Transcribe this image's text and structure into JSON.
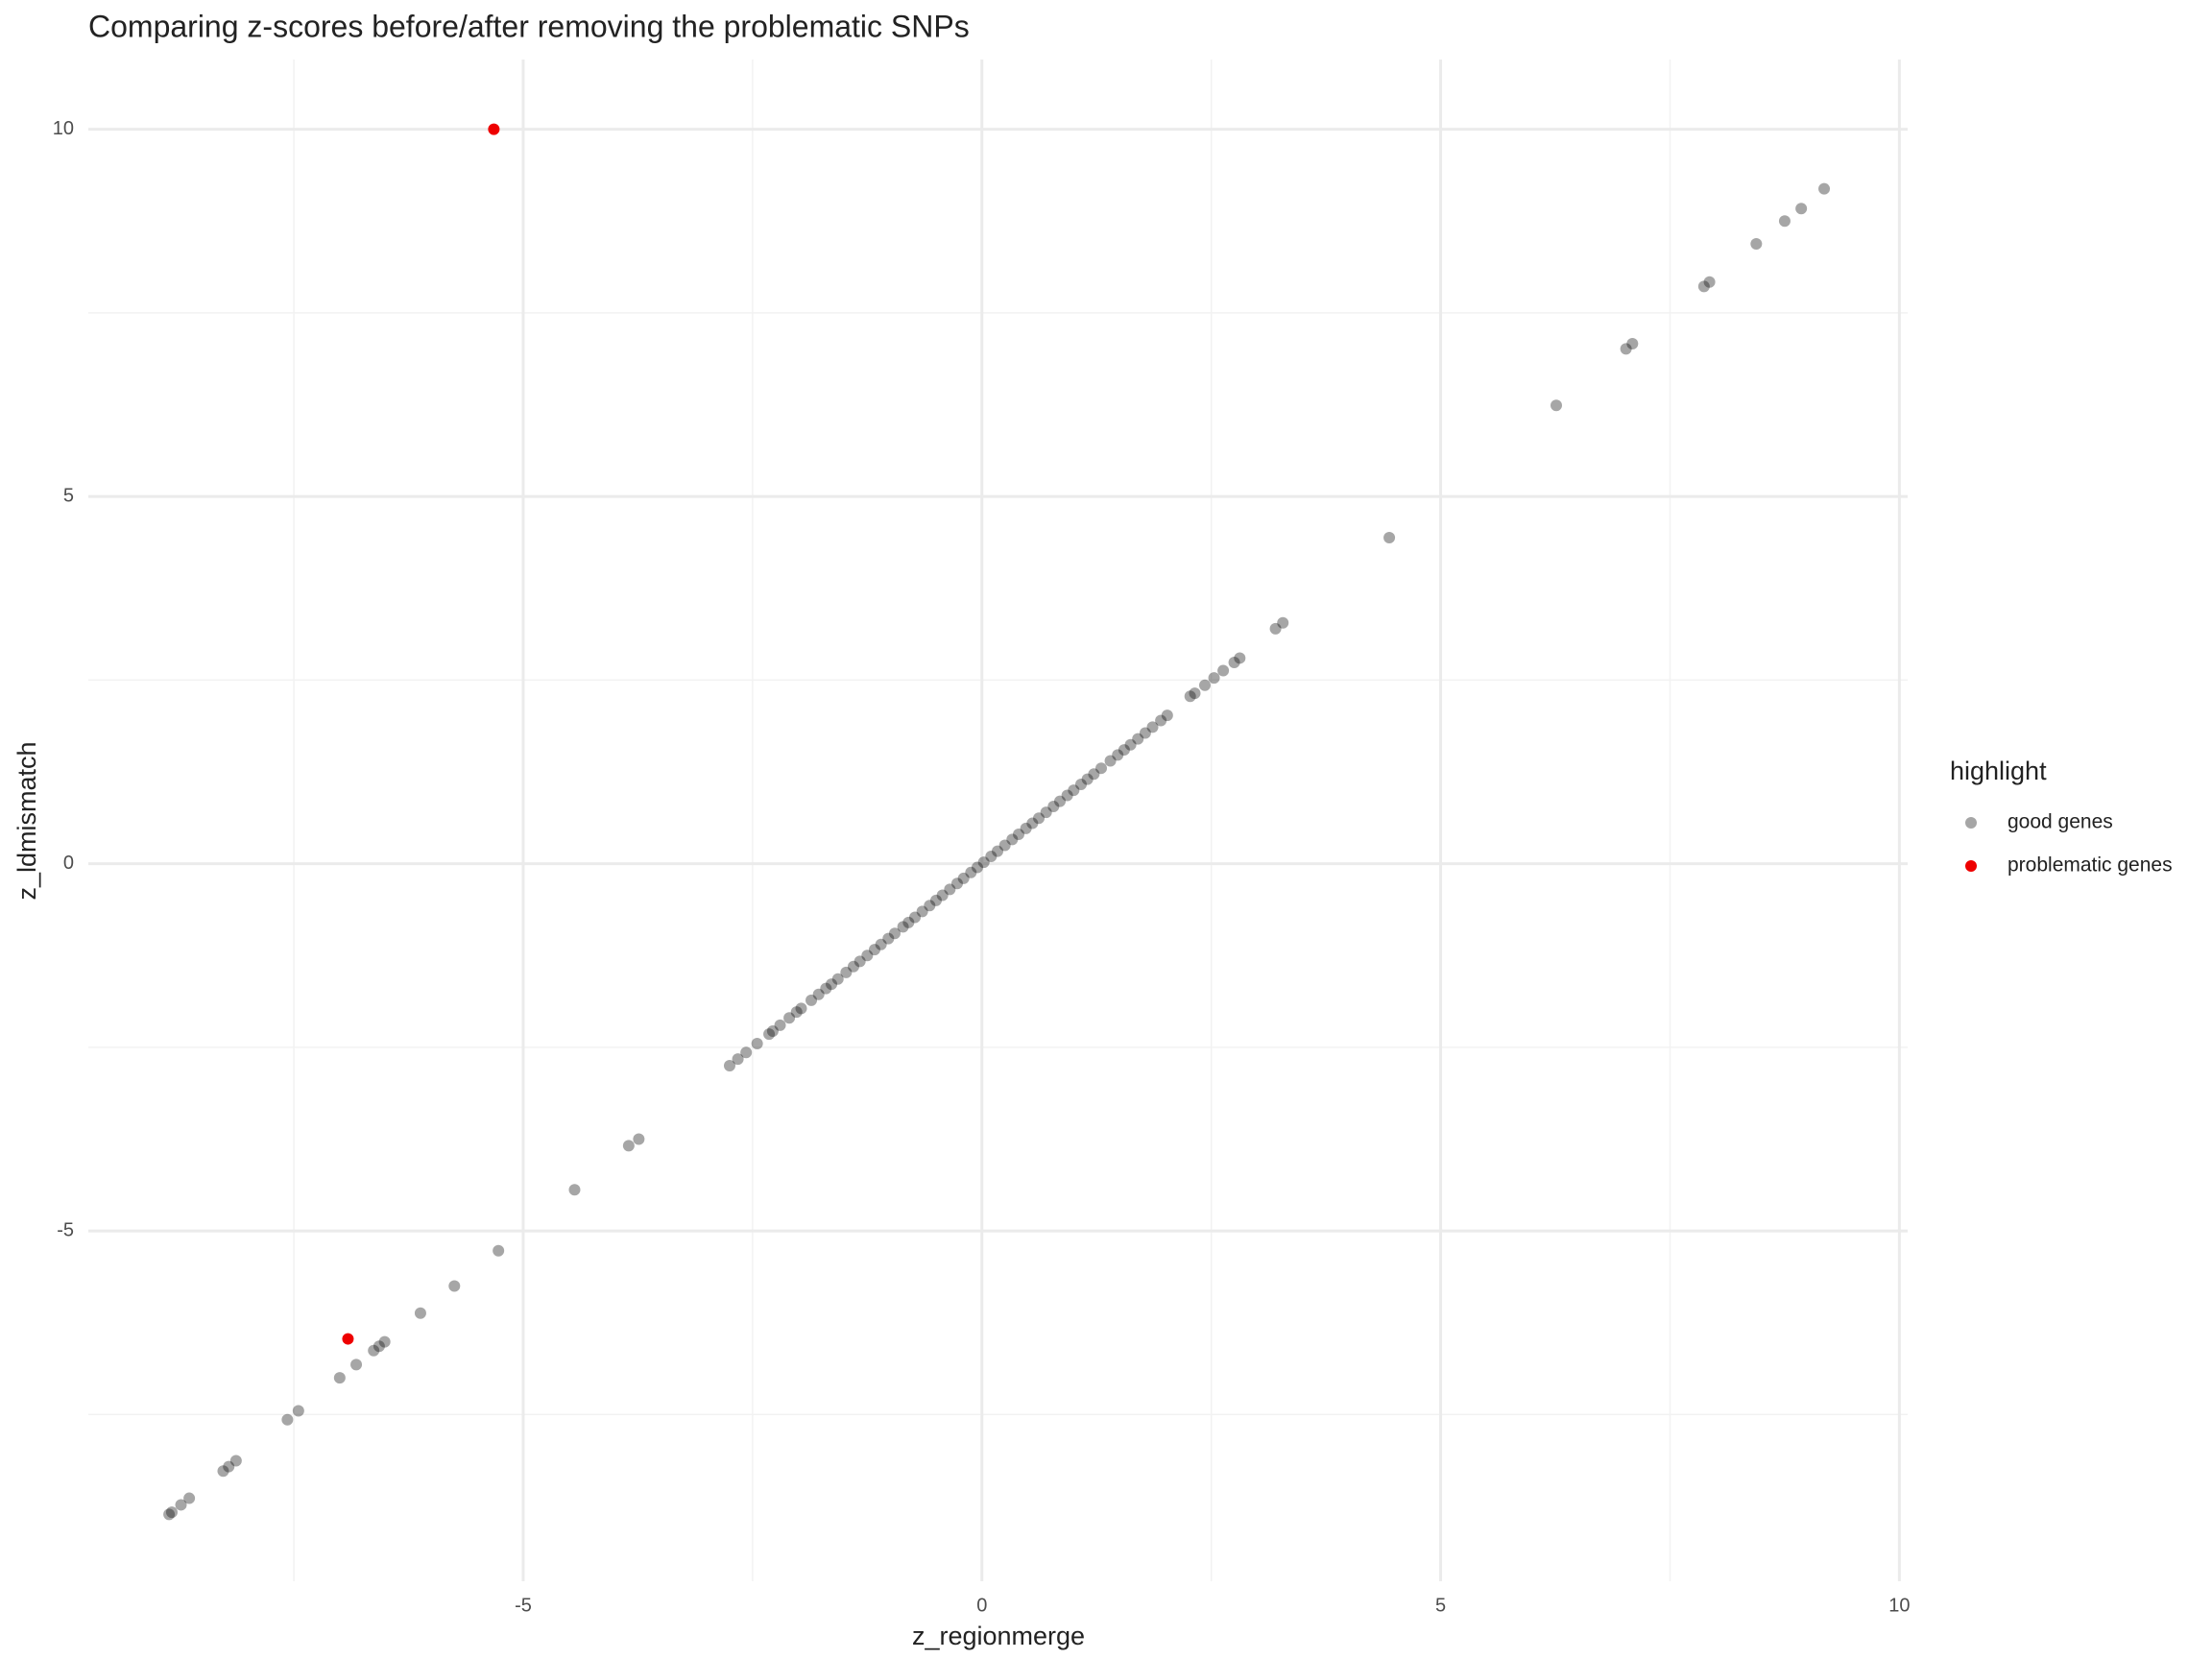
{
  "chart_data": {
    "type": "scatter",
    "title": "Comparing z-scores before/after removing the problematic SNPs",
    "x_label": "z_regionmerge",
    "y_label": "z_ldmismatch",
    "legend_title": "highlight",
    "legend": "right",
    "xlim": [
      -9.74,
      10.09
    ],
    "ylim": [
      -9.77,
      10.95
    ],
    "xticks": [
      -5,
      0,
      5,
      10
    ],
    "yticks": [
      -5,
      0,
      5,
      10
    ],
    "x_minor_ticks": [
      -7.5,
      -2.5,
      2.5,
      7.5
    ],
    "y_minor_ticks": [
      -7.5,
      -2.5,
      2.5,
      7.5
    ],
    "grid": true,
    "series": [
      {
        "name": "good genes",
        "color": "#000000",
        "opacity": 0.35,
        "x": [
          9.18,
          8.93,
          8.75,
          8.44,
          7.93,
          7.87,
          7.09,
          7.02,
          6.26,
          4.44,
          3.28,
          3.2,
          2.81,
          2.75,
          2.63,
          2.53,
          2.43,
          2.32,
          2.27,
          -3.74,
          -3.85,
          -4.44,
          -5.27,
          -5.75,
          -6.12,
          -6.51,
          -6.57,
          -6.63,
          -6.82,
          -7.0,
          -7.45,
          -7.57,
          -8.13,
          -8.21,
          -8.27,
          -8.64,
          -8.73,
          -8.83,
          -8.86,
          -2.75,
          -2.66,
          -2.57,
          -2.45,
          -2.32,
          -2.28,
          -2.2,
          -2.1,
          -2.02,
          -1.97,
          -1.86,
          -1.78,
          -1.7,
          -1.64,
          -1.57,
          -1.48,
          -1.4,
          -1.33,
          -1.25,
          -1.17,
          -1.1,
          -1.02,
          -0.95,
          -0.86,
          -0.8,
          -0.73,
          -0.65,
          -0.57,
          -0.5,
          -0.43,
          -0.35,
          -0.27,
          -0.2,
          -0.12,
          -0.05,
          0.02,
          0.1,
          0.17,
          0.25,
          0.33,
          0.4,
          0.48,
          0.55,
          0.62,
          0.7,
          0.78,
          0.85,
          0.93,
          1.0,
          1.08,
          1.15,
          1.22,
          1.3,
          1.4,
          1.48,
          1.55,
          1.62,
          1.7,
          1.78,
          1.86,
          1.95,
          2.02
        ],
        "values": [
          9.19,
          8.92,
          8.75,
          8.44,
          7.92,
          7.86,
          7.08,
          7.01,
          6.24,
          4.44,
          3.28,
          3.2,
          2.8,
          2.74,
          2.63,
          2.53,
          2.43,
          2.32,
          2.28,
          -3.75,
          -3.84,
          -4.44,
          -5.27,
          -5.75,
          -6.12,
          -6.51,
          -6.57,
          -6.63,
          -6.82,
          -7.0,
          -7.45,
          -7.57,
          -8.13,
          -8.21,
          -8.27,
          -8.64,
          -8.73,
          -8.83,
          -8.86,
          -2.75,
          -2.66,
          -2.57,
          -2.45,
          -2.32,
          -2.28,
          -2.2,
          -2.1,
          -2.02,
          -1.97,
          -1.86,
          -1.78,
          -1.7,
          -1.64,
          -1.57,
          -1.48,
          -1.4,
          -1.33,
          -1.25,
          -1.17,
          -1.1,
          -1.02,
          -0.95,
          -0.86,
          -0.8,
          -0.73,
          -0.65,
          -0.57,
          -0.5,
          -0.43,
          -0.35,
          -0.27,
          -0.2,
          -0.12,
          -0.05,
          0.02,
          0.1,
          0.17,
          0.25,
          0.33,
          0.4,
          0.48,
          0.55,
          0.62,
          0.7,
          0.78,
          0.85,
          0.93,
          1.0,
          1.08,
          1.15,
          1.22,
          1.3,
          1.4,
          1.48,
          1.55,
          1.62,
          1.7,
          1.78,
          1.86,
          1.95,
          2.02
        ]
      },
      {
        "name": "problematic genes",
        "color": "#ee0000",
        "opacity": 1,
        "x": [
          -5.32,
          -6.91
        ],
        "values": [
          10.0,
          -6.47
        ]
      }
    ]
  }
}
